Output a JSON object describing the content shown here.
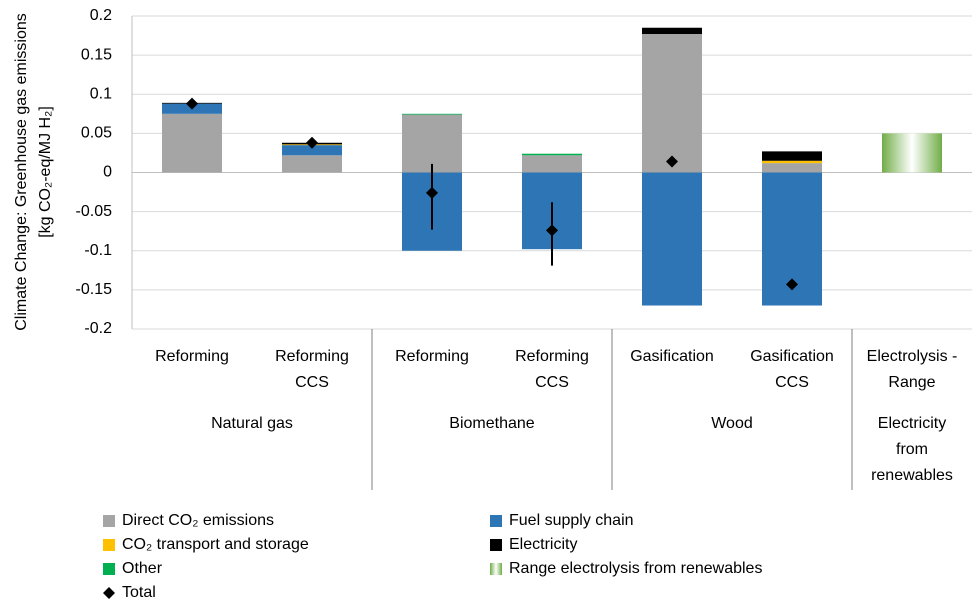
{
  "chart_data": {
    "type": "stacked_bar",
    "y_label": [
      "Climate Change: Greenhouse gas emissions",
      "[kg CO₂-eq/MJ H₂]"
    ],
    "categories": [
      "Reforming",
      "Reforming\nCCS",
      "Reforming",
      "Reforming\nCCS",
      "Gasification",
      "Gasification\nCCS",
      "Electrolysis -\nRange"
    ],
    "x_groups": [
      "Natural gas",
      "Natural gas",
      "Biomethane",
      "Biomethane",
      "Wood",
      "Wood",
      "Electricity\nfrom\nrenewables"
    ],
    "series": [
      {
        "name": "Direct CO₂ emissions",
        "color": "#a5a5a5",
        "values": [
          0.075,
          0.022,
          0.074,
          0.022,
          0.177,
          0.012,
          0
        ]
      },
      {
        "name": "Fuel supply chain",
        "color": "#2e75b6",
        "values": [
          0.013,
          0.013,
          -0.1,
          -0.098,
          -0.17,
          -0.17,
          0
        ]
      },
      {
        "name": "CO₂ transport and storage",
        "color": "#ffc000",
        "values": [
          0,
          0.001,
          0,
          0,
          0,
          0.003,
          0
        ]
      },
      {
        "name": "Electricity",
        "color": "#000000",
        "values": [
          0.001,
          0.002,
          0,
          0,
          0.008,
          0.012,
          0
        ]
      },
      {
        "name": "Other",
        "color": "#00b050",
        "values": [
          0,
          0,
          0.001,
          0.002,
          0,
          0,
          0
        ]
      },
      {
        "name": "Range electrolysis from renewables",
        "color": "#70ad47",
        "gradient": true,
        "values": [
          0,
          0,
          0,
          0,
          0,
          0,
          0.05
        ]
      }
    ],
    "total": {
      "name": "Total",
      "color": "#000000",
      "values": [
        0.088,
        0.038,
        -0.026,
        -0.074,
        0.014,
        -0.143,
        null
      ],
      "error_minus": [
        null,
        null,
        0.047,
        0.045,
        null,
        null,
        null
      ],
      "error_plus": [
        null,
        null,
        0.037,
        0.036,
        null,
        null,
        null
      ]
    },
    "ylim": [
      -0.2,
      0.2
    ],
    "yticks": [
      0.2,
      0.15,
      0.1,
      0.05,
      0,
      -0.05,
      -0.1,
      -0.15,
      -0.2
    ],
    "grid": true,
    "legend": "bottom"
  }
}
